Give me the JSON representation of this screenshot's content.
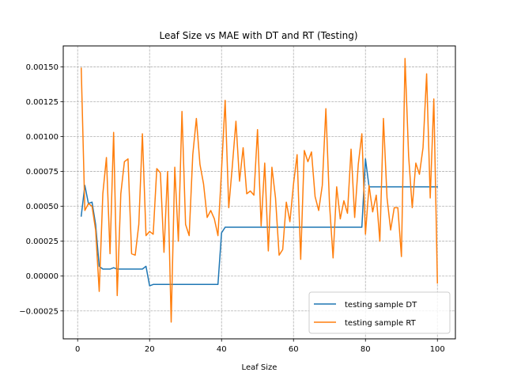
{
  "chart_data": {
    "type": "line",
    "title": "Leaf Size vs MAE with DT and RT (Testing)",
    "xlabel": "Leaf Size",
    "ylabel": "",
    "xlim": [
      -4,
      105
    ],
    "ylim": [
      -0.00045,
      0.00165
    ],
    "xticks": [
      0,
      20,
      40,
      60,
      80,
      100
    ],
    "yticks": [
      -0.00025,
      0.0,
      0.00025,
      0.0005,
      0.00075,
      0.001,
      0.00125,
      0.0015
    ],
    "ytick_labels": [
      "−0.00025",
      "0.00000",
      "0.00025",
      "0.00050",
      "0.00075",
      "0.00100",
      "0.00125",
      "0.00150"
    ],
    "grid": true,
    "legend_position": "lower-right",
    "series": [
      {
        "name": "testing sample DT",
        "color": "#1f77b4",
        "x": [
          1,
          2,
          3,
          4,
          5,
          6,
          7,
          8,
          9,
          10,
          11,
          12,
          13,
          14,
          15,
          16,
          17,
          18,
          19,
          20,
          21,
          22,
          23,
          24,
          25,
          26,
          27,
          28,
          29,
          30,
          31,
          32,
          33,
          34,
          35,
          36,
          37,
          38,
          39,
          40,
          41,
          42,
          43,
          44,
          45,
          46,
          47,
          48,
          49,
          50,
          51,
          52,
          53,
          54,
          55,
          56,
          57,
          58,
          59,
          60,
          61,
          62,
          63,
          64,
          65,
          66,
          67,
          68,
          69,
          70,
          71,
          72,
          73,
          74,
          75,
          76,
          77,
          78,
          79,
          80,
          81,
          82,
          83,
          84,
          85,
          86,
          87,
          88,
          89,
          90,
          91,
          92,
          93,
          94,
          95,
          96,
          97,
          98,
          99,
          100
        ],
        "y": [
          0.00043,
          0.00065,
          0.00052,
          0.00053,
          0.00037,
          7e-05,
          5e-05,
          5e-05,
          5e-05,
          6e-05,
          5e-05,
          5e-05,
          5e-05,
          5e-05,
          5e-05,
          5e-05,
          5e-05,
          5e-05,
          7e-05,
          -7e-05,
          -6e-05,
          -6e-05,
          -6e-05,
          -6e-05,
          -6e-05,
          -6e-05,
          -6e-05,
          -6e-05,
          -6e-05,
          -6e-05,
          -6e-05,
          -6e-05,
          -6e-05,
          -6e-05,
          -6e-05,
          -6e-05,
          -6e-05,
          -6e-05,
          -6e-05,
          0.00031,
          0.00035,
          0.00035,
          0.00035,
          0.00035,
          0.00035,
          0.00035,
          0.00035,
          0.00035,
          0.00035,
          0.00035,
          0.00035,
          0.00035,
          0.00035,
          0.00035,
          0.00035,
          0.00035,
          0.00035,
          0.00035,
          0.00035,
          0.00035,
          0.00035,
          0.00035,
          0.00035,
          0.00035,
          0.00035,
          0.00035,
          0.00035,
          0.00035,
          0.00035,
          0.00035,
          0.00035,
          0.00035,
          0.00035,
          0.00035,
          0.00035,
          0.00035,
          0.00035,
          0.00035,
          0.00035,
          0.00084,
          0.00064,
          0.00064,
          0.00064,
          0.00064,
          0.00064,
          0.00064,
          0.00064,
          0.00064,
          0.00064,
          0.00064,
          0.00064,
          0.00064,
          0.00064,
          0.00064,
          0.00064,
          0.00064,
          0.00064,
          0.00064,
          0.00064,
          0.00064
        ]
      },
      {
        "name": "testing sample RT",
        "color": "#ff7f0e",
        "x": [
          1,
          2,
          3,
          4,
          5,
          6,
          7,
          8,
          9,
          10,
          11,
          12,
          13,
          14,
          15,
          16,
          17,
          18,
          19,
          20,
          21,
          22,
          23,
          24,
          25,
          26,
          27,
          28,
          29,
          30,
          31,
          32,
          33,
          34,
          35,
          36,
          37,
          38,
          39,
          40,
          41,
          42,
          43,
          44,
          45,
          46,
          47,
          48,
          49,
          50,
          51,
          52,
          53,
          54,
          55,
          56,
          57,
          58,
          59,
          60,
          61,
          62,
          63,
          64,
          65,
          66,
          67,
          68,
          69,
          70,
          71,
          72,
          73,
          74,
          75,
          76,
          77,
          78,
          79,
          80,
          81,
          82,
          83,
          84,
          85,
          86,
          87,
          88,
          89,
          90,
          91,
          92,
          93,
          94,
          95,
          96,
          97,
          98,
          99,
          100
        ],
        "y": [
          0.00149,
          0.00047,
          0.00052,
          0.0005,
          0.00033,
          -0.00011,
          0.00059,
          0.00085,
          0.00016,
          0.00103,
          -0.00014,
          0.00059,
          0.00082,
          0.00084,
          0.00016,
          0.00015,
          0.00037,
          0.00102,
          0.00029,
          0.00032,
          0.0003,
          0.00077,
          0.00074,
          0.00017,
          0.00075,
          -0.00033,
          0.00078,
          0.00025,
          0.00118,
          0.00037,
          0.00029,
          0.00087,
          0.00113,
          0.0008,
          0.00066,
          0.00042,
          0.00047,
          0.00041,
          0.00029,
          0.00076,
          0.00126,
          0.00049,
          0.00079,
          0.00111,
          0.00068,
          0.00092,
          0.00059,
          0.00061,
          0.00058,
          0.00105,
          0.00036,
          0.00081,
          0.00018,
          0.00078,
          0.00056,
          0.00015,
          0.00019,
          0.00053,
          0.00039,
          0.00066,
          0.00087,
          0.00012,
          0.0009,
          0.00082,
          0.00089,
          0.00057,
          0.00047,
          0.00065,
          0.0012,
          0.00052,
          0.00013,
          0.00064,
          0.00041,
          0.00054,
          0.00045,
          0.00091,
          0.00042,
          0.0008,
          0.00102,
          0.0003,
          0.00065,
          0.00046,
          0.00058,
          0.00025,
          0.00113,
          0.00056,
          0.00033,
          0.00049,
          0.00049,
          0.00014,
          0.00156,
          0.00086,
          0.00049,
          0.00081,
          0.00073,
          0.00092,
          0.00145,
          0.00056,
          0.00127,
          -5e-05
        ]
      }
    ]
  }
}
